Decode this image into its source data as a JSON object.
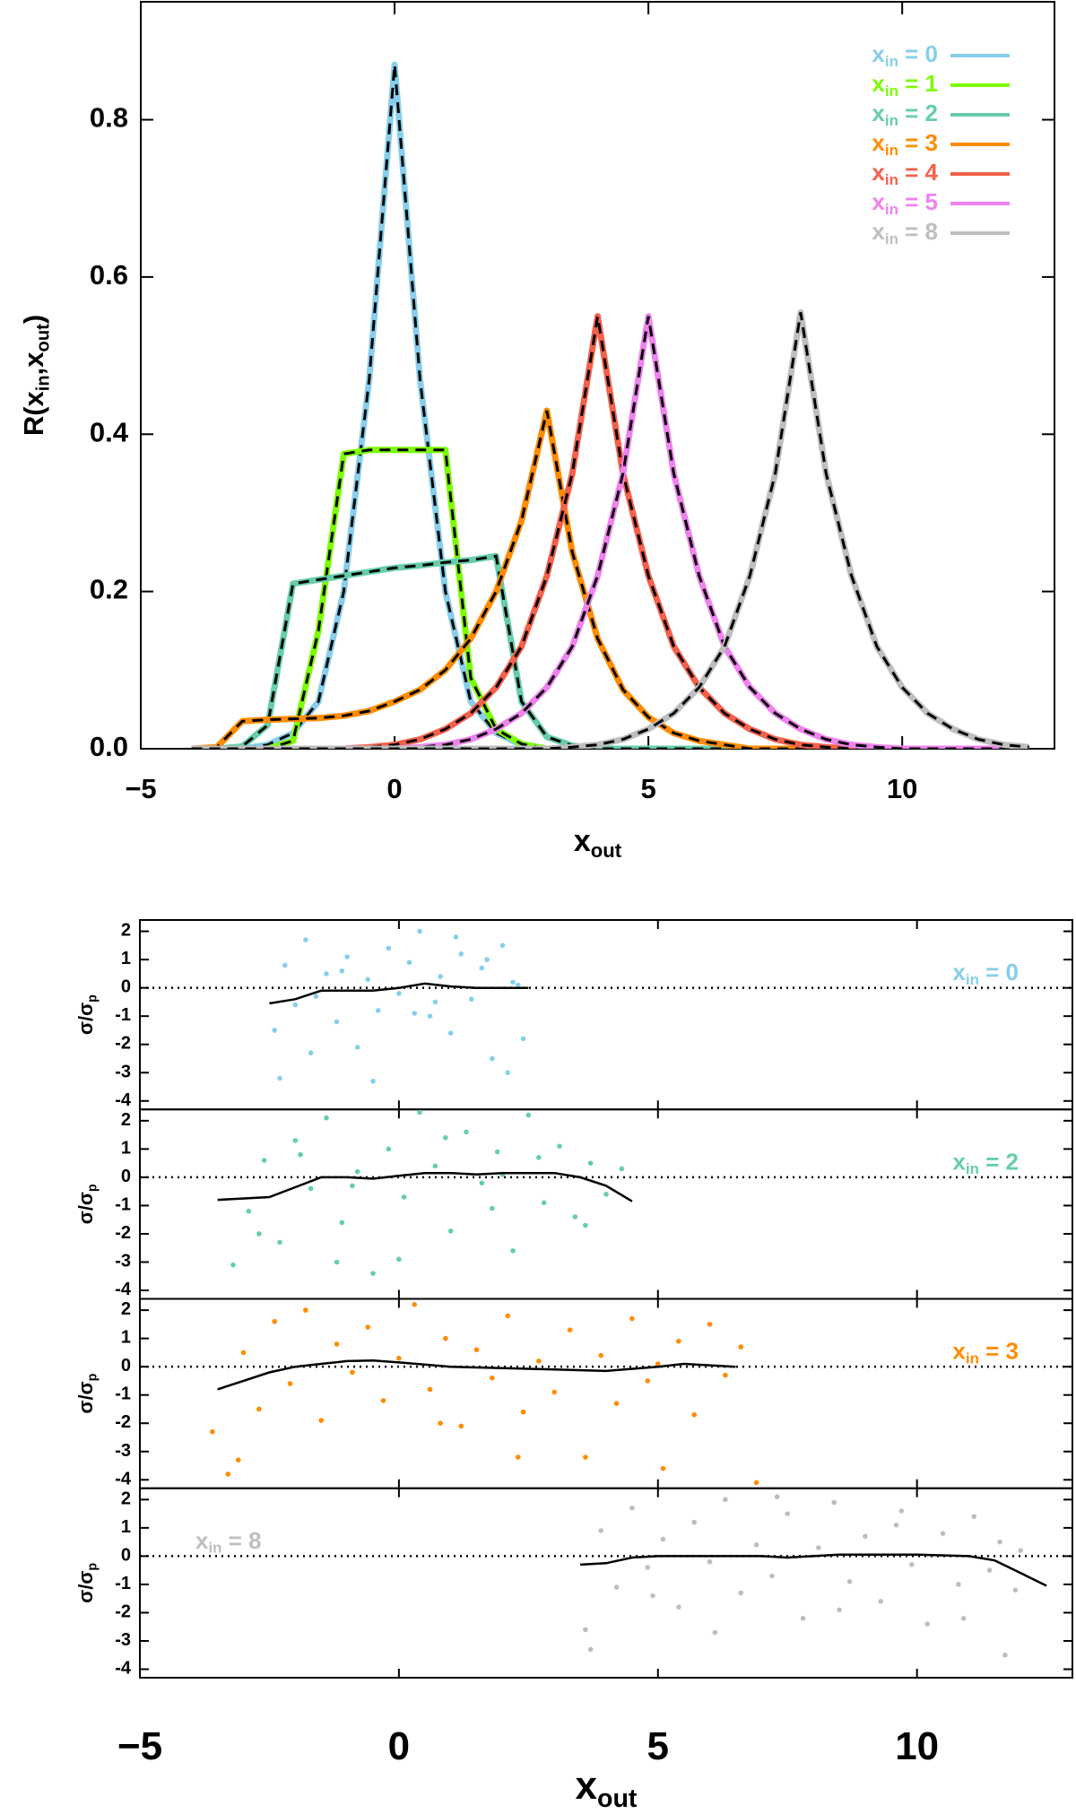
{
  "chart_data": [
    {
      "type": "line",
      "ylabel": "R(xin,xout)",
      "xlabel": "xout",
      "x": [
        -4,
        -3.5,
        -3,
        -2.5,
        -2,
        -1.5,
        -1,
        -0.5,
        0,
        0.5,
        1,
        1.5,
        2,
        2.5,
        3,
        3.5,
        4,
        4.5,
        5,
        5.5,
        6,
        6.5,
        7,
        7.5,
        8,
        8.5,
        9,
        9.5,
        10,
        10.5,
        11,
        11.5,
        12,
        12.5
      ],
      "xlim": [
        -5,
        13
      ],
      "xticks": [
        {
          "value": -5,
          "label": "−5"
        },
        0,
        5,
        10
      ],
      "ylim": [
        0,
        0.95
      ],
      "yticks": [
        {
          "value": 0,
          "label": "0.0"
        },
        {
          "value": 0.2,
          "label": "0.2"
        },
        {
          "value": 0.4,
          "label": "0.4"
        },
        {
          "value": 0.6,
          "label": "0.6"
        },
        {
          "value": 0.8,
          "label": "0.8"
        }
      ],
      "legend": "upper right",
      "series": [
        {
          "name": "xin = 0",
          "color": "#87ceeb",
          "values": [
            0,
            0,
            0,
            0.005,
            0.02,
            0.06,
            0.2,
            0.47,
            0.87,
            0.47,
            0.2,
            0.06,
            0.02,
            0.005,
            0,
            0,
            0,
            0,
            0,
            0,
            0,
            0,
            0,
            0,
            0,
            0,
            0,
            0,
            0,
            0,
            0,
            0,
            0,
            0
          ]
        },
        {
          "name": "xin = 1",
          "color": "#7cfc00",
          "values": [
            0,
            0,
            0,
            0,
            0.01,
            0.15,
            0.375,
            0.38,
            0.38,
            0.38,
            0.38,
            0.09,
            0.025,
            0.006,
            0,
            0,
            0,
            0,
            0,
            0,
            0,
            0,
            0,
            0,
            0,
            0,
            0,
            0,
            0,
            0,
            0,
            0,
            0,
            0
          ]
        },
        {
          "name": "xin = 2",
          "color": "#66cdaa",
          "values": [
            0,
            0,
            0.003,
            0.03,
            0.21,
            0.215,
            0.22,
            0.225,
            0.23,
            0.233,
            0.237,
            0.24,
            0.245,
            0.06,
            0.015,
            0.004,
            0,
            0,
            0,
            0,
            0,
            0,
            0,
            0,
            0,
            0,
            0,
            0,
            0,
            0,
            0,
            0,
            0,
            0
          ]
        },
        {
          "name": "xin = 3",
          "color": "#ff8c00",
          "values": [
            0,
            0.002,
            0.035,
            0.037,
            0.038,
            0.039,
            0.042,
            0.048,
            0.06,
            0.075,
            0.1,
            0.14,
            0.2,
            0.29,
            0.43,
            0.25,
            0.14,
            0.075,
            0.04,
            0.02,
            0.01,
            0.005,
            0,
            0,
            0,
            0,
            0,
            0,
            0,
            0,
            0,
            0,
            0,
            0
          ]
        },
        {
          "name": "xin = 4",
          "color": "#f4604a",
          "values": [
            0,
            0,
            0,
            0,
            0,
            0,
            0,
            0.002,
            0.005,
            0.012,
            0.025,
            0.045,
            0.078,
            0.13,
            0.22,
            0.35,
            0.55,
            0.35,
            0.22,
            0.13,
            0.078,
            0.045,
            0.025,
            0.012,
            0.005,
            0.002,
            0,
            0,
            0,
            0,
            0,
            0,
            0,
            0
          ]
        },
        {
          "name": "xin = 5",
          "color": "#ee82ee",
          "values": [
            0,
            0,
            0,
            0,
            0,
            0,
            0,
            0,
            0,
            0.002,
            0.005,
            0.012,
            0.025,
            0.045,
            0.078,
            0.13,
            0.22,
            0.35,
            0.55,
            0.35,
            0.22,
            0.13,
            0.078,
            0.045,
            0.025,
            0.012,
            0.005,
            0.002,
            0,
            0,
            0,
            0,
            0,
            0
          ]
        },
        {
          "name": "xin = 8",
          "color": "#bebebe",
          "values": [
            0,
            0,
            0,
            0,
            0,
            0,
            0,
            0,
            0,
            0,
            0,
            0,
            0,
            0,
            0,
            0.002,
            0.005,
            0.012,
            0.025,
            0.045,
            0.078,
            0.13,
            0.22,
            0.35,
            0.555,
            0.35,
            0.22,
            0.13,
            0.078,
            0.045,
            0.025,
            0.012,
            0.005,
            0.002
          ]
        }
      ]
    },
    {
      "type": "scatter",
      "ylabel": "σ/σp",
      "annotation": "xin = 0",
      "annotation_position": "upper right",
      "color": "#87ceeb",
      "xlim": [
        -5,
        13
      ],
      "xticks": [
        -5,
        0,
        5,
        10
      ],
      "ylim": [
        -4.3,
        2.4
      ],
      "yticks": [
        -4,
        -3,
        -2,
        -1,
        0,
        1,
        2
      ],
      "hline": 0,
      "x": [
        -2.4,
        -2.2,
        -2.0,
        -1.8,
        -1.6,
        -1.4,
        -1.2,
        -1.0,
        -0.8,
        -0.6,
        -0.4,
        -0.2,
        0.0,
        0.2,
        0.4,
        0.6,
        0.8,
        1.0,
        1.2,
        1.4,
        1.6,
        1.8,
        2.0,
        2.2,
        2.4,
        -2.3,
        -1.1,
        0.3,
        1.1,
        2.3,
        -0.5,
        0.7,
        1.7,
        -1.7,
        2.1
      ],
      "values": [
        -1.5,
        0.8,
        -0.6,
        1.7,
        -0.3,
        0.5,
        -1.2,
        1.1,
        -2.1,
        0.3,
        -0.8,
        1.4,
        -0.2,
        0.9,
        2.0,
        -1.0,
        0.4,
        -1.6,
        1.2,
        -0.4,
        0.7,
        -2.5,
        1.5,
        0.2,
        -1.8,
        -3.2,
        0.6,
        -0.9,
        1.8,
        0.1,
        -3.3,
        -0.5,
        1.0,
        -2.3,
        -3.0
      ],
      "trend": {
        "x": [
          -2.5,
          -2,
          -1.5,
          -1,
          -0.5,
          0,
          0.5,
          1,
          1.5,
          2,
          2.5
        ],
        "values": [
          -0.55,
          -0.4,
          -0.1,
          -0.1,
          -0.1,
          0,
          0.15,
          0.05,
          0,
          0,
          0
        ]
      }
    },
    {
      "type": "scatter",
      "ylabel": "σ/σp",
      "annotation": "xin = 2",
      "annotation_position": "upper right",
      "color": "#66cdaa",
      "xlim": [
        -5,
        13
      ],
      "xticks": [
        -5,
        0,
        5,
        10
      ],
      "ylim": [
        -4.3,
        2.4
      ],
      "yticks": [
        -4,
        -3,
        -2,
        -1,
        0,
        1,
        2
      ],
      "hline": 0,
      "x": [
        -3.2,
        -2.9,
        -2.6,
        -2.3,
        -2.0,
        -1.7,
        -1.4,
        -1.1,
        -0.8,
        -0.5,
        -0.2,
        0.1,
        0.4,
        0.7,
        1.0,
        1.3,
        1.6,
        1.9,
        2.2,
        2.5,
        2.8,
        3.1,
        3.4,
        3.7,
        4.0,
        4.3,
        -2.7,
        -1.9,
        -0.9,
        0.0,
        0.9,
        1.8,
        2.7,
        3.6,
        -1.2,
        2.0
      ],
      "values": [
        -3.1,
        -1.2,
        0.6,
        -2.3,
        1.3,
        -0.4,
        2.1,
        -1.6,
        0.2,
        -3.4,
        1.0,
        -0.7,
        2.3,
        0.4,
        -1.9,
        1.6,
        -0.2,
        0.9,
        -2.6,
        2.2,
        -0.9,
        1.1,
        -1.4,
        0.5,
        -0.6,
        0.3,
        -2.0,
        0.8,
        -0.3,
        -2.9,
        1.4,
        -1.1,
        0.7,
        -1.7,
        -3.0,
        0.1
      ],
      "trend": {
        "x": [
          -3.5,
          -2.5,
          -2,
          -1.5,
          -1,
          -0.5,
          0,
          0.5,
          1,
          1.5,
          2,
          2.5,
          3,
          3.5,
          4,
          4.5
        ],
        "values": [
          -0.8,
          -0.7,
          -0.35,
          0,
          0,
          -0.05,
          0.05,
          0.15,
          0.15,
          0.1,
          0.15,
          0.15,
          0.15,
          0,
          -0.3,
          -0.85
        ]
      }
    },
    {
      "type": "scatter",
      "ylabel": "σ/σp",
      "annotation": "xin = 3",
      "annotation_position": "upper right",
      "color": "#ff8c00",
      "xlim": [
        -5,
        13
      ],
      "xticks": [
        -5,
        0,
        5,
        10
      ],
      "ylim": [
        -4.3,
        2.4
      ],
      "yticks": [
        -4,
        -3,
        -2,
        -1,
        0,
        1,
        2
      ],
      "hline": 0,
      "x": [
        -3.6,
        -3.3,
        -3.0,
        -2.7,
        -2.4,
        -2.1,
        -1.8,
        -1.5,
        -1.2,
        -0.9,
        -0.6,
        -0.3,
        0.0,
        0.3,
        0.6,
        0.9,
        1.2,
        1.5,
        1.8,
        2.1,
        2.4,
        2.7,
        3.0,
        3.3,
        3.6,
        3.9,
        4.2,
        4.5,
        4.8,
        5.1,
        5.4,
        5.7,
        6.0,
        6.3,
        6.6,
        6.9,
        -3.1,
        0.8,
        2.3,
        5.0
      ],
      "values": [
        -2.3,
        -3.8,
        0.5,
        -1.5,
        1.6,
        -0.6,
        2.0,
        -1.9,
        0.8,
        -0.2,
        1.4,
        -1.2,
        0.3,
        2.2,
        -0.8,
        1.0,
        -2.1,
        0.6,
        -0.4,
        1.8,
        -1.6,
        0.2,
        -0.9,
        1.3,
        -3.2,
        0.4,
        -1.3,
        1.7,
        -0.5,
        -3.6,
        0.9,
        -1.7,
        1.5,
        -0.3,
        0.7,
        -4.1,
        -3.3,
        -2.0,
        -3.2,
        0.1
      ],
      "trend": {
        "x": [
          -3.5,
          -3,
          -2.5,
          -2,
          -1.5,
          -1,
          -0.5,
          0,
          1,
          2,
          3,
          4,
          5,
          5.5,
          6.5
        ],
        "values": [
          -0.8,
          -0.5,
          -0.2,
          0,
          0.1,
          0.2,
          0.22,
          0.15,
          0,
          -0.05,
          -0.1,
          -0.15,
          0,
          0.1,
          0
        ]
      }
    },
    {
      "type": "scatter",
      "ylabel": "σ/σp",
      "xlabel": "xout",
      "annotation": "xin = 8",
      "annotation_position": "upper left",
      "color": "#bebebe",
      "xlim": [
        -5,
        13
      ],
      "xticks": [
        {
          "value": -5,
          "label": "−5"
        },
        0,
        5,
        10
      ],
      "ylim": [
        -4.3,
        2.4
      ],
      "yticks": [
        -4,
        -3,
        -2,
        -1,
        0,
        1,
        2
      ],
      "hline": 0,
      "x": [
        3.6,
        3.9,
        4.2,
        4.5,
        4.8,
        5.1,
        5.4,
        5.7,
        6.0,
        6.3,
        6.6,
        6.9,
        7.2,
        7.5,
        7.8,
        8.1,
        8.4,
        8.7,
        9.0,
        9.3,
        9.6,
        9.9,
        10.2,
        10.5,
        10.8,
        11.1,
        11.4,
        11.7,
        12.0,
        3.7,
        4.9,
        6.1,
        7.3,
        8.5,
        9.7,
        10.9,
        11.6,
        11.9
      ],
      "values": [
        -2.6,
        0.9,
        -1.1,
        1.7,
        -0.4,
        0.6,
        -1.8,
        1.2,
        -0.2,
        2.0,
        -1.3,
        0.4,
        -0.7,
        1.5,
        -2.2,
        0.3,
        1.9,
        -0.9,
        0.7,
        -1.6,
        1.1,
        -0.3,
        -2.4,
        0.8,
        -1.0,
        1.4,
        -0.5,
        -3.5,
        0.2,
        -3.3,
        -1.4,
        -2.7,
        2.1,
        -1.9,
        1.6,
        -2.2,
        0.5,
        -1.2
      ],
      "trend": {
        "x": [
          3.5,
          4,
          4.5,
          5,
          6,
          7,
          7.5,
          8,
          8.5,
          9,
          10,
          11,
          11.5,
          12,
          12.5
        ],
        "values": [
          -0.3,
          -0.25,
          -0.05,
          0,
          0,
          0,
          -0.05,
          0,
          0.05,
          0.05,
          0.05,
          0,
          -0.15,
          -0.6,
          -1.05
        ]
      }
    }
  ]
}
